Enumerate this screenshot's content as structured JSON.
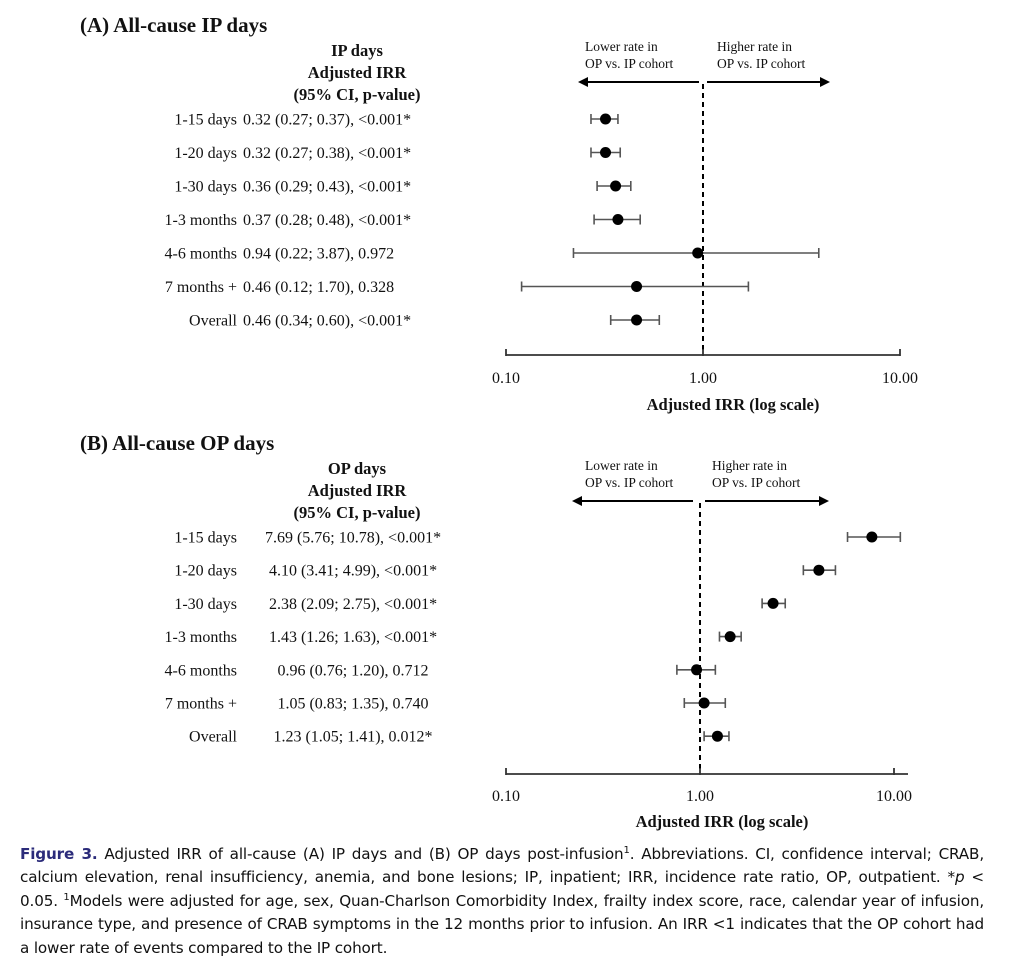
{
  "chart_data": [
    {
      "type": "forest",
      "panel_title": "(A) All-cause IP days",
      "table_header": [
        "IP days",
        "Adjusted IRR",
        "(95% CI, p-value)"
      ],
      "direction_labels": {
        "left": [
          "Lower rate in",
          "OP vs. IP cohort"
        ],
        "right": [
          "Higher rate in",
          "OP vs. IP cohort"
        ]
      },
      "xscale": "log",
      "xlim": [
        0.1,
        10
      ],
      "xticks": [
        0.1,
        1,
        10
      ],
      "xtick_labels": [
        "0.10",
        "1.00",
        "10.00"
      ],
      "xlabel": "Adjusted IRR (log scale)",
      "reference_line": 1.0,
      "rows": [
        {
          "label": "1-15 days",
          "irr": 0.32,
          "lo": 0.27,
          "hi": 0.37,
          "p": "<0.001*",
          "text": "0.32 (0.27; 0.37), <0.001*"
        },
        {
          "label": "1-20 days",
          "irr": 0.32,
          "lo": 0.27,
          "hi": 0.38,
          "p": "<0.001*",
          "text": "0.32 (0.27; 0.38), <0.001*"
        },
        {
          "label": "1-30 days",
          "irr": 0.36,
          "lo": 0.29,
          "hi": 0.43,
          "p": "<0.001*",
          "text": "0.36 (0.29; 0.43), <0.001*"
        },
        {
          "label": "1-3 months",
          "irr": 0.37,
          "lo": 0.28,
          "hi": 0.48,
          "p": "<0.001*",
          "text": "0.37 (0.28; 0.48), <0.001*"
        },
        {
          "label": "4-6 months",
          "irr": 0.94,
          "lo": 0.22,
          "hi": 3.87,
          "p": "0.972",
          "text": "0.94 (0.22; 3.87), 0.972"
        },
        {
          "label": "7 months +",
          "irr": 0.46,
          "lo": 0.12,
          "hi": 1.7,
          "p": "0.328",
          "text": "0.46 (0.12; 1.70), 0.328"
        },
        {
          "label": "Overall",
          "irr": 0.46,
          "lo": 0.34,
          "hi": 0.6,
          "p": "<0.001*",
          "text": "0.46 (0.34; 0.60), <0.001*"
        }
      ]
    },
    {
      "type": "forest",
      "panel_title": "(B) All-cause OP days",
      "table_header": [
        "OP days",
        "Adjusted IRR",
        "(95% CI, p-value)"
      ],
      "direction_labels": {
        "left": [
          "Lower rate in",
          "OP vs. IP cohort"
        ],
        "right": [
          "Higher rate in",
          "OP vs. IP cohort"
        ]
      },
      "xscale": "log",
      "xlim": [
        0.1,
        10
      ],
      "xticks": [
        0.1,
        1,
        10
      ],
      "xtick_labels": [
        "0.10",
        "1.00",
        "10.00"
      ],
      "xlabel": "Adjusted IRR (log scale)",
      "reference_line": 1.0,
      "rows": [
        {
          "label": "1-15 days",
          "irr": 7.69,
          "lo": 5.76,
          "hi": 10.78,
          "p": "<0.001*",
          "text": "7.69 (5.76; 10.78), <0.001*"
        },
        {
          "label": "1-20 days",
          "irr": 4.1,
          "lo": 3.41,
          "hi": 4.99,
          "p": "<0.001*",
          "text": "4.10 (3.41; 4.99), <0.001*"
        },
        {
          "label": "1-30 days",
          "irr": 2.38,
          "lo": 2.09,
          "hi": 2.75,
          "p": "<0.001*",
          "text": "2.38 (2.09; 2.75), <0.001*"
        },
        {
          "label": "1-3 months",
          "irr": 1.43,
          "lo": 1.26,
          "hi": 1.63,
          "p": "<0.001*",
          "text": "1.43 (1.26; 1.63), <0.001*"
        },
        {
          "label": "4-6 months",
          "irr": 0.96,
          "lo": 0.76,
          "hi": 1.2,
          "p": "0.712",
          "text": "0.96 (0.76; 1.20), 0.712"
        },
        {
          "label": "7 months +",
          "irr": 1.05,
          "lo": 0.83,
          "hi": 1.35,
          "p": "0.740",
          "text": "1.05 (0.83; 1.35), 0.740"
        },
        {
          "label": "Overall",
          "irr": 1.23,
          "lo": 1.05,
          "hi": 1.41,
          "p": "0.012*",
          "text": "1.23 (1.05; 1.41), 0.012*"
        }
      ]
    }
  ],
  "caption": {
    "label": "Figure 3.",
    "label_color": "#2b2b7a",
    "part1": " Adjusted IRR of all-cause (A) IP days and (B) OP days post-infusion",
    "sup1": "1",
    "part2": ". Abbreviations. CI, confidence interval; CRAB, calcium elevation, renal insufficiency, anemia, and bone lesions; IP, inpatient; IRR, incidence rate ratio, OP, outpatient. *",
    "p_symbol": "p",
    "part3": " < 0.05. ",
    "sup2": "1",
    "part4": "Models were adjusted for age, sex, Quan-Charlson Comorbidity Index, frailty index score, race, calendar year of infusion, insurance type, and presence of CRAB symptoms in the 12 months prior to infusion. An IRR <1 indicates that the OP cohort had a lower rate of events compared to the IP cohort."
  }
}
